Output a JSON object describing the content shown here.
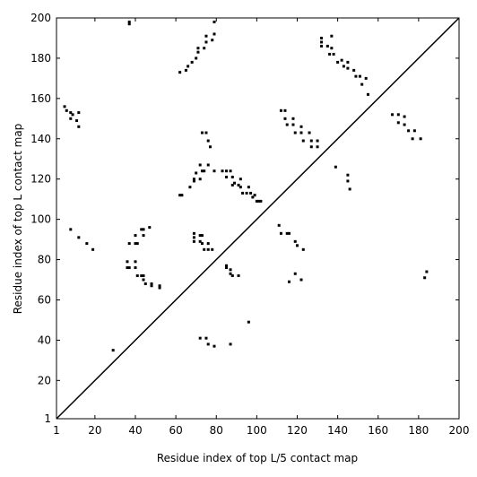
{
  "chart_data": {
    "type": "scatter",
    "xlabel": "Residue index of top L/5 contact map",
    "ylabel": "Residue index of top L contact map",
    "xlim": [
      1,
      200
    ],
    "ylim": [
      1,
      200
    ],
    "xticks": [
      1,
      20,
      40,
      60,
      80,
      100,
      120,
      140,
      160,
      180,
      200
    ],
    "yticks": [
      1,
      20,
      40,
      60,
      80,
      100,
      120,
      140,
      160,
      180,
      200
    ],
    "color": "#000000",
    "x": [
      37,
      37,
      79,
      62,
      65,
      66,
      68,
      70,
      71,
      71,
      74,
      75,
      75,
      78,
      79,
      5,
      6,
      8,
      9,
      8,
      11,
      12,
      12,
      112,
      114,
      114,
      115,
      118,
      118,
      119,
      122,
      122,
      123,
      126,
      127,
      127,
      130,
      130,
      132,
      132,
      132,
      135,
      136,
      137,
      137,
      138,
      140,
      142,
      143,
      145,
      145,
      148,
      149,
      151,
      152,
      154,
      155,
      167,
      170,
      170,
      173,
      173,
      175,
      177,
      178,
      181,
      145,
      145,
      146,
      139,
      62,
      63,
      67,
      69,
      69,
      72,
      73,
      74,
      76,
      79,
      83,
      85,
      85,
      87,
      88,
      88,
      89,
      91,
      92,
      92,
      93,
      95,
      96,
      97,
      98,
      100,
      101,
      102,
      99,
      70,
      72,
      73,
      75,
      77,
      76,
      111,
      112,
      115,
      116,
      119,
      120,
      123,
      69,
      69,
      72,
      73,
      72,
      73,
      69,
      76,
      76,
      78,
      74,
      40,
      43,
      44,
      44,
      47,
      37,
      40,
      41,
      8,
      12,
      16,
      19,
      36,
      37,
      36,
      40,
      40,
      41,
      43,
      44,
      44,
      45,
      48,
      48,
      52,
      52,
      85,
      85,
      87,
      87,
      88,
      91,
      96,
      116,
      119,
      122,
      184,
      183,
      87,
      72,
      75,
      76,
      79,
      29
    ],
    "values": [
      197,
      198,
      198,
      173,
      174,
      176,
      178,
      180,
      183,
      185,
      185,
      188,
      191,
      189,
      192,
      156,
      154,
      153,
      152,
      150,
      149,
      153,
      146,
      154,
      154,
      150,
      147,
      150,
      147,
      143,
      146,
      143,
      139,
      143,
      139,
      136,
      139,
      136,
      190,
      188,
      186,
      186,
      182,
      191,
      185,
      182,
      178,
      179,
      176,
      175,
      178,
      174,
      171,
      171,
      167,
      170,
      162,
      152,
      152,
      148,
      151,
      147,
      144,
      140,
      144,
      140,
      122,
      119,
      115,
      126,
      112,
      112,
      116,
      119,
      120,
      120,
      124,
      124,
      127,
      124,
      124,
      124,
      121,
      124,
      121,
      117,
      118,
      117,
      120,
      116,
      113,
      113,
      116,
      113,
      111,
      109,
      109,
      109,
      112,
      123,
      127,
      143,
      143,
      136,
      139,
      97,
      93,
      93,
      93,
      89,
      87,
      85,
      93,
      91,
      92,
      92,
      89,
      88,
      89,
      88,
      85,
      85,
      85,
      92,
      95,
      95,
      92,
      96,
      88,
      88,
      88,
      95,
      91,
      88,
      85,
      79,
      76,
      76,
      79,
      76,
      72,
      72,
      72,
      70,
      68,
      67,
      68,
      67,
      66,
      77,
      76,
      75,
      73,
      72,
      72,
      49,
      69,
      73,
      70,
      74,
      71,
      38,
      41,
      41,
      38,
      37,
      35
    ]
  }
}
